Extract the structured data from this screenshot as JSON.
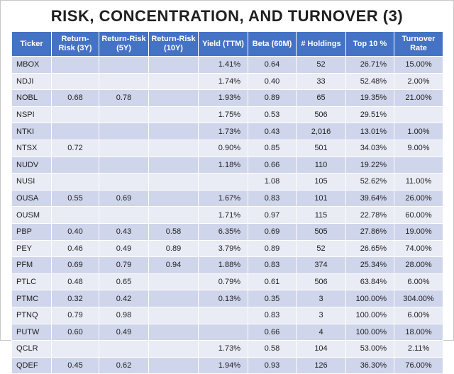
{
  "title": "RISK, CONCENTRATION, AND TURNOVER (3)",
  "columns": [
    "Ticker",
    "Return-Risk (3Y)",
    "Return-Risk (5Y)",
    "Return-Risk (10Y)",
    "Yield (TTM)",
    "Beta (60M)",
    "# Holdings",
    "Top 10 %",
    "Turnover Rate"
  ],
  "rows": [
    [
      "MBOX",
      "",
      "",
      "",
      "1.41%",
      "0.64",
      "52",
      "26.71%",
      "15.00%"
    ],
    [
      "NDJI",
      "",
      "",
      "",
      "1.74%",
      "0.40",
      "33",
      "52.48%",
      "2.00%"
    ],
    [
      "NOBL",
      "0.68",
      "0.78",
      "",
      "1.93%",
      "0.89",
      "65",
      "19.35%",
      "21.00%"
    ],
    [
      "NSPI",
      "",
      "",
      "",
      "1.75%",
      "0.53",
      "506",
      "29.51%",
      ""
    ],
    [
      "NTKI",
      "",
      "",
      "",
      "1.73%",
      "0.43",
      "2,016",
      "13.01%",
      "1.00%"
    ],
    [
      "NTSX",
      "0.72",
      "",
      "",
      "0.90%",
      "0.85",
      "501",
      "34.03%",
      "9.00%"
    ],
    [
      "NUDV",
      "",
      "",
      "",
      "1.18%",
      "0.66",
      "110",
      "19.22%",
      ""
    ],
    [
      "NUSI",
      "",
      "",
      "",
      "",
      "1.08",
      "105",
      "52.62%",
      "11.00%"
    ],
    [
      "OUSA",
      "0.55",
      "0.69",
      "",
      "1.67%",
      "0.83",
      "101",
      "39.64%",
      "26.00%"
    ],
    [
      "OUSM",
      "",
      "",
      "",
      "1.71%",
      "0.97",
      "115",
      "22.78%",
      "60.00%"
    ],
    [
      "PBP",
      "0.40",
      "0.43",
      "0.58",
      "6.35%",
      "0.69",
      "505",
      "27.86%",
      "19.00%"
    ],
    [
      "PEY",
      "0.46",
      "0.49",
      "0.89",
      "3.79%",
      "0.89",
      "52",
      "26.65%",
      "74.00%"
    ],
    [
      "PFM",
      "0.69",
      "0.79",
      "0.94",
      "1.88%",
      "0.83",
      "374",
      "25.34%",
      "28.00%"
    ],
    [
      "PTLC",
      "0.48",
      "0.65",
      "",
      "0.79%",
      "0.61",
      "506",
      "63.84%",
      "6.00%"
    ],
    [
      "PTMC",
      "0.32",
      "0.42",
      "",
      "0.13%",
      "0.35",
      "3",
      "100.00%",
      "304.00%"
    ],
    [
      "PTNQ",
      "0.79",
      "0.98",
      "",
      "",
      "0.83",
      "3",
      "100.00%",
      "6.00%"
    ],
    [
      "PUTW",
      "0.60",
      "0.49",
      "",
      "",
      "0.66",
      "4",
      "100.00%",
      "18.00%"
    ],
    [
      "QCLR",
      "",
      "",
      "",
      "1.73%",
      "0.58",
      "104",
      "53.00%",
      "2.11%"
    ],
    [
      "QDEF",
      "0.45",
      "0.62",
      "",
      "1.94%",
      "0.93",
      "126",
      "36.30%",
      "76.00%"
    ]
  ]
}
